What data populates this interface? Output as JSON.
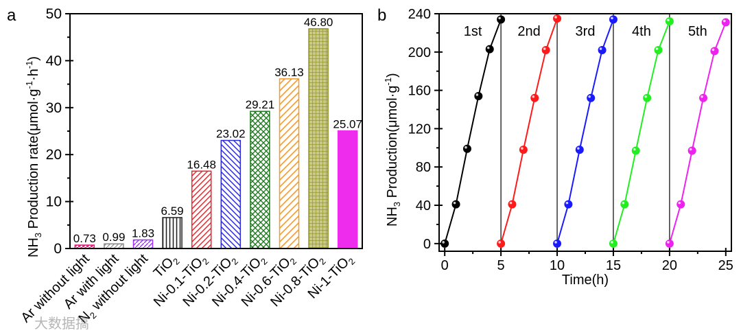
{
  "chart_data": [
    {
      "panel": "a",
      "type": "bar",
      "ylabel_main": "NH",
      "ylabel_sub": "3",
      "ylabel_rest": " Production rate(μmol·g",
      "ylabel_sup1": "-1",
      "ylabel_mid": "·h",
      "ylabel_sup2": "-1",
      "ylabel_end": ")",
      "ylim": [
        0,
        50
      ],
      "yticks": [
        0,
        10,
        20,
        30,
        40,
        50
      ],
      "categories": [
        {
          "label": "Ar without light",
          "sub": ""
        },
        {
          "label": "Ar with light",
          "sub": ""
        },
        {
          "label": "N",
          "sub": "2",
          "label2": " without light"
        },
        {
          "label": "TiO",
          "sub": "2"
        },
        {
          "label": "Ni-0.1-TiO",
          "sub": "2"
        },
        {
          "label": "Ni-0.2-TiO",
          "sub": "2"
        },
        {
          "label": "Ni-0.4-TiO",
          "sub": "2"
        },
        {
          "label": "Ni-0.6-TiO",
          "sub": "2"
        },
        {
          "label": "Ni-0.8-TiO",
          "sub": "2"
        },
        {
          "label": "Ni-1-TiO",
          "sub": "2"
        }
      ],
      "values": [
        0.73,
        0.99,
        1.83,
        6.59,
        16.48,
        23.02,
        29.21,
        36.13,
        46.8,
        25.07
      ],
      "value_labels": [
        "0.73",
        "0.99",
        "1.83",
        "6.59",
        "16.48",
        "23.02",
        "29.21",
        "36.13",
        "46.80",
        "25.07"
      ],
      "colors": [
        "#e0207a",
        "#888888",
        "#9b30ff",
        "#222222",
        "#e8232b",
        "#2a2ad8",
        "#1f7a1f",
        "#f39a2a",
        "#8e8e1a",
        "#ee2cee"
      ]
    },
    {
      "panel": "b",
      "type": "line",
      "xlabel": "Time(h)",
      "ylabel_main": "NH",
      "ylabel_sub": "3",
      "ylabel_rest": " Production(μmol·g",
      "ylabel_sup": "-1",
      "ylabel_end": ")",
      "xlim": [
        -0.5,
        25.5
      ],
      "ylim": [
        -8,
        240
      ],
      "xticks": [
        0,
        5,
        10,
        15,
        20,
        25
      ],
      "yticks": [
        0,
        40,
        80,
        120,
        160,
        200,
        240
      ],
      "cycle_boundaries": [
        5,
        10,
        15,
        20
      ],
      "series": [
        {
          "name": "1st",
          "color": "#000000",
          "x": [
            0,
            1,
            2,
            3,
            4,
            5
          ],
          "y": [
            0,
            41,
            99,
            154,
            203,
            234
          ]
        },
        {
          "name": "2nd",
          "color": "#ff1a1a",
          "x": [
            5,
            6,
            7,
            8,
            9,
            10
          ],
          "y": [
            0,
            41,
            98,
            152,
            202,
            235
          ]
        },
        {
          "name": "3rd",
          "color": "#1a1aff",
          "x": [
            10,
            11,
            12,
            13,
            14,
            15
          ],
          "y": [
            0,
            41,
            98,
            152,
            202,
            234
          ]
        },
        {
          "name": "4th",
          "color": "#22ee22",
          "x": [
            15,
            16,
            17,
            18,
            19,
            20
          ],
          "y": [
            0,
            41,
            97,
            152,
            202,
            232
          ]
        },
        {
          "name": "5th",
          "color": "#ee22ee",
          "x": [
            20,
            21,
            22,
            23,
            24,
            25
          ],
          "y": [
            0,
            41,
            97,
            152,
            201,
            231
          ]
        }
      ]
    }
  ],
  "watermark": "大数据搞"
}
